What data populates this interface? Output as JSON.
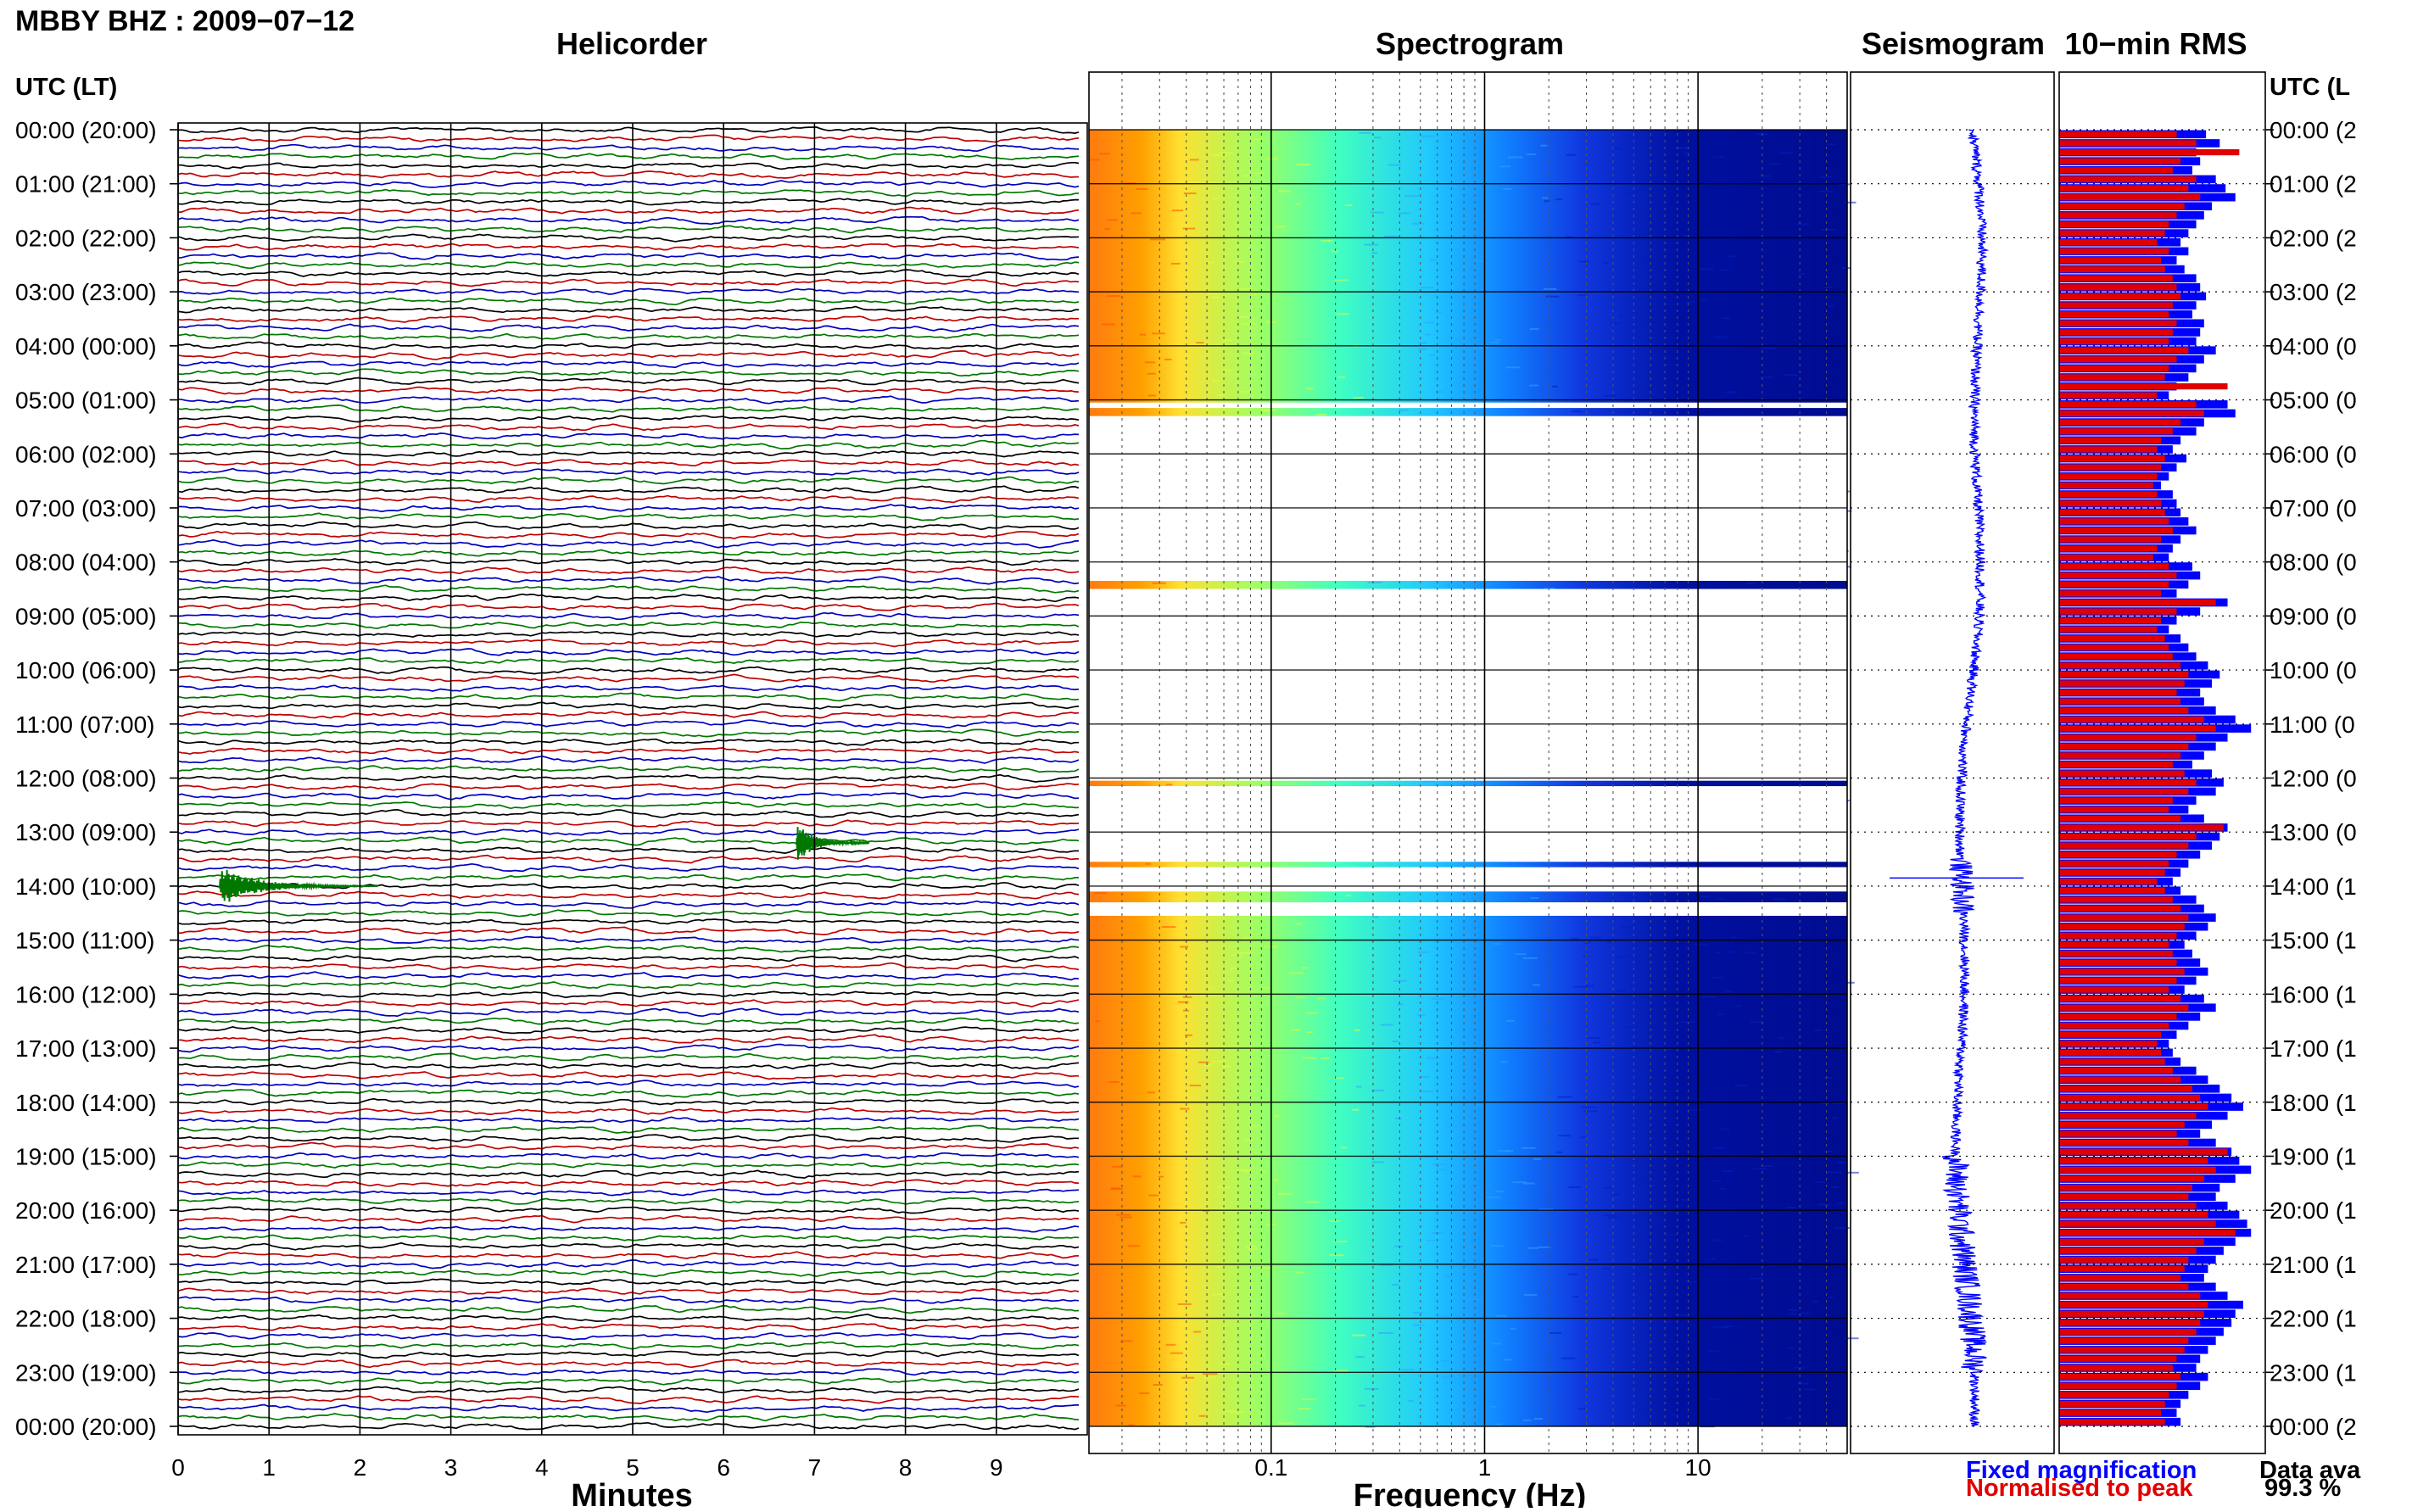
{
  "title": "MBBY BHZ : 2009−07−12",
  "panels": {
    "helicorder": "Helicorder",
    "spectrogram": "Spectrogram",
    "seismogram": "Seismogram",
    "rms": "10−min RMS"
  },
  "left_header": "UTC (LT)",
  "right_header": "UTC (L",
  "time_labels": [
    "00:00 (20:00)",
    "01:00 (21:00)",
    "02:00 (22:00)",
    "03:00 (23:00)",
    "04:00 (00:00)",
    "05:00 (01:00)",
    "06:00 (02:00)",
    "07:00 (03:00)",
    "08:00 (04:00)",
    "09:00 (05:00)",
    "10:00 (06:00)",
    "11:00 (07:00)",
    "12:00 (08:00)",
    "13:00 (09:00)",
    "14:00 (10:00)",
    "15:00 (11:00)",
    "16:00 (12:00)",
    "17:00 (13:00)",
    "18:00 (14:00)",
    "19:00 (15:00)",
    "20:00 (16:00)",
    "21:00 (17:00)",
    "22:00 (18:00)",
    "23:00 (19:00)",
    "00:00 (20:00)"
  ],
  "right_time_labels": [
    "00:00 (2",
    "01:00 (2",
    "02:00 (2",
    "03:00 (2",
    "04:00 (0",
    "05:00 (0",
    "06:00 (0",
    "07:00 (0",
    "08:00 (0",
    "09:00 (0",
    "10:00 (0",
    "11:00 (0",
    "12:00 (0",
    "13:00 (0",
    "14:00 (1",
    "15:00 (1",
    "16:00 (1",
    "17:00 (1",
    "18:00 (1",
    "19:00 (1",
    "20:00 (1",
    "21:00 (1",
    "22:00 (1",
    "23:00 (1",
    "00:00 (2"
  ],
  "legend": {
    "fixed": "Fixed magnification",
    "normalised": "Normalised to peak",
    "data_avail_label": "Data ava",
    "data_avail_value": "99.3 %"
  },
  "colors": {
    "trace_cycle": [
      "#000000",
      "#c00000",
      "#0000c0",
      "#007800"
    ],
    "fixed": "#0000ff",
    "normalised": "#e00000"
  },
  "chart_data": [
    {
      "type": "line",
      "title": "Helicorder",
      "xlabel": "Minutes",
      "x_ticks": [
        0,
        1,
        2,
        3,
        4,
        5,
        6,
        7,
        8,
        9
      ],
      "xlim": [
        0,
        10
      ],
      "rows_per_hour": 6,
      "hours": 24,
      "events": [
        {
          "label": "",
          "row_hour": 14.0,
          "minute_start": 0.45,
          "minute_end": 2.2,
          "color": "#007800"
        },
        {
          "label": "",
          "row_hour": 13.2,
          "minute_start": 6.8,
          "minute_end": 7.6,
          "color": "#007800"
        }
      ]
    },
    {
      "type": "heatmap",
      "title": "Spectrogram",
      "xlabel": "Frequency (Hz)",
      "x_scale": "log",
      "x_ticks": [
        "0.1",
        "1",
        "10"
      ],
      "xlim_hz": [
        0.014,
        50
      ],
      "data_gaps_hours": [
        5.05,
        5.15,
        5.3,
        8.35,
        8.5,
        12.05,
        12.15,
        13.55,
        13.65,
        14.1,
        14.3,
        14.55,
        14.7
      ]
    },
    {
      "type": "line",
      "title": "Seismogram",
      "scale": "Fixed magnification"
    },
    {
      "type": "bar",
      "title": "10−min RMS",
      "series": [
        {
          "name": "Fixed magnification",
          "values": [
            0.75,
            0.82,
            0.7,
            0.72,
            0.68,
            0.8,
            0.85,
            0.9,
            0.78,
            0.74,
            0.7,
            0.66,
            0.62,
            0.66,
            0.6,
            0.64,
            0.7,
            0.72,
            0.75,
            0.7,
            0.68,
            0.74,
            0.72,
            0.7,
            0.8,
            0.74,
            0.7,
            0.66,
            0.6,
            0.56,
            0.86,
            0.9,
            0.74,
            0.7,
            0.62,
            0.58,
            0.65,
            0.6,
            0.56,
            0.52,
            0.58,
            0.6,
            0.62,
            0.66,
            0.7,
            0.62,
            0.58,
            0.56,
            0.68,
            0.72,
            0.66,
            0.6,
            0.86,
            0.72,
            0.6,
            0.56,
            0.62,
            0.66,
            0.7,
            0.76,
            0.82,
            0.78,
            0.72,
            0.74,
            0.8,
            0.9,
            0.98,
            0.86,
            0.8,
            0.74,
            0.68,
            0.78,
            0.84,
            0.8,
            0.7,
            0.66,
            0.74,
            0.86,
            0.82,
            0.78,
            0.72,
            0.66,
            0.62,
            0.58,
            0.62,
            0.7,
            0.74,
            0.8,
            0.76,
            0.7,
            0.64,
            0.68,
            0.72,
            0.76,
            0.7,
            0.64,
            0.74,
            0.8,
            0.72,
            0.66,
            0.6,
            0.56,
            0.58,
            0.62,
            0.7,
            0.76,
            0.82,
            0.88,
            0.94,
            0.86,
            0.78,
            0.72,
            0.8,
            0.88,
            0.92,
            0.98,
            0.9,
            0.82,
            0.8,
            0.86,
            0.92,
            0.96,
            0.98,
            0.9,
            0.84,
            0.8,
            0.76,
            0.74,
            0.8,
            0.86,
            0.94,
            0.9,
            0.88,
            0.84,
            0.8,
            0.76,
            0.72,
            0.7,
            0.76,
            0.72,
            0.66,
            0.62,
            0.6,
            0.62
          ]
        },
        {
          "name": "Normalised to peak",
          "values": [
            0.6,
            0.7,
            0.92,
            0.62,
            0.58,
            0.7,
            0.66,
            0.72,
            0.64,
            0.6,
            0.56,
            0.54,
            0.5,
            0.56,
            0.52,
            0.54,
            0.58,
            0.6,
            0.62,
            0.58,
            0.56,
            0.6,
            0.58,
            0.56,
            0.66,
            0.6,
            0.56,
            0.54,
            0.86,
            0.5,
            0.7,
            0.74,
            0.62,
            0.58,
            0.52,
            0.5,
            0.54,
            0.52,
            0.5,
            0.48,
            0.5,
            0.52,
            0.54,
            0.56,
            0.58,
            0.52,
            0.5,
            0.48,
            0.56,
            0.6,
            0.56,
            0.52,
            0.8,
            0.6,
            0.52,
            0.5,
            0.54,
            0.56,
            0.58,
            0.62,
            0.66,
            0.64,
            0.6,
            0.62,
            0.66,
            0.74,
            0.8,
            0.7,
            0.66,
            0.62,
            0.58,
            0.64,
            0.7,
            0.66,
            0.58,
            0.56,
            0.62,
            0.84,
            0.7,
            0.66,
            0.6,
            0.56,
            0.54,
            0.5,
            0.54,
            0.58,
            0.62,
            0.66,
            0.64,
            0.6,
            0.56,
            0.58,
            0.6,
            0.64,
            0.6,
            0.56,
            0.62,
            0.66,
            0.6,
            0.56,
            0.52,
            0.5,
            0.52,
            0.54,
            0.58,
            0.62,
            0.68,
            0.72,
            0.76,
            0.7,
            0.64,
            0.6,
            0.66,
            0.86,
            0.76,
            0.8,
            0.74,
            0.68,
            0.66,
            0.7,
            0.76,
            0.8,
            0.9,
            0.74,
            0.7,
            0.66,
            0.64,
            0.62,
            0.66,
            0.72,
            0.76,
            0.74,
            0.72,
            0.7,
            0.66,
            0.64,
            0.6,
            0.58,
            0.62,
            0.6,
            0.56,
            0.54,
            0.52,
            0.54
          ]
        }
      ]
    }
  ]
}
